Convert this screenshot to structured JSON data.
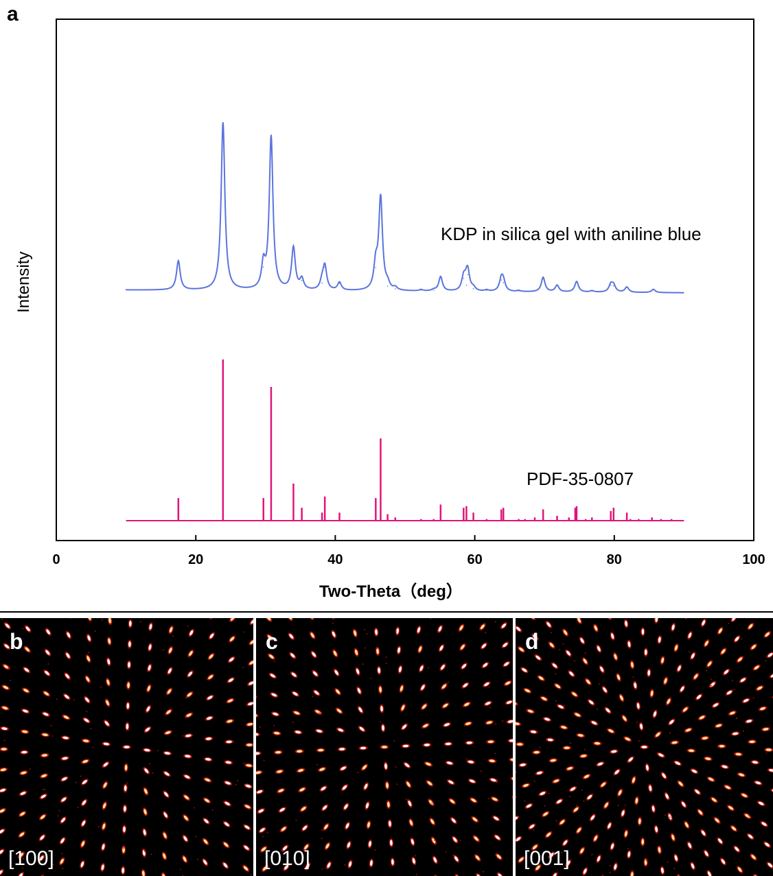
{
  "chart_data": {
    "type": "line",
    "panel_label": "a",
    "xlabel": "Two-Theta（deg）",
    "ylabel": "Intensity",
    "xlim": [
      0,
      100
    ],
    "xticks": [
      0,
      20,
      40,
      60,
      80,
      100
    ],
    "grid": false,
    "legend": "none",
    "series": [
      {
        "name": "KDP in silica gel with aniline  blue",
        "color": "#5a73dd",
        "style": "line",
        "baseline": 0.3,
        "x": [
          17.5,
          23.9,
          29.7,
          30.8,
          34.0,
          35.2,
          38.1,
          38.5,
          40.6,
          45.8,
          46.5,
          47.5,
          48.6,
          52.3,
          54.1,
          55.1,
          58.4,
          58.8,
          59.0,
          59.8,
          61.7,
          63.8,
          64.1,
          66.3,
          69.8,
          71.8,
          74.6,
          76.8,
          79.5,
          79.9,
          81.8,
          85.6
        ],
        "y": [
          11,
          63.5,
          9,
          58,
          16,
          4,
          3,
          9,
          3,
          9,
          35,
          2,
          1,
          0.5,
          0.5,
          5.5,
          5,
          2.5,
          6.5,
          1.2,
          0.5,
          4.5,
          3.5,
          0.4,
          5.5,
          2.5,
          4,
          0.5,
          2.8,
          2.5,
          2,
          1.2
        ]
      },
      {
        "name": "PDF-35-0807",
        "color": "#e0147a",
        "style": "stick",
        "x": [
          17.5,
          23.9,
          29.7,
          30.8,
          34.0,
          35.2,
          38.1,
          38.5,
          40.6,
          45.8,
          46.5,
          47.5,
          48.6,
          52.3,
          54.1,
          55.1,
          58.4,
          58.8,
          59.8,
          61.7,
          63.8,
          64.1,
          66.3,
          67.2,
          68.6,
          69.8,
          71.8,
          73.5,
          74.4,
          74.6,
          75.9,
          76.8,
          79.5,
          79.9,
          81.8,
          82.3,
          83.5,
          85.4,
          86.7,
          88.2
        ],
        "y": [
          14,
          100,
          14,
          83,
          23,
          8,
          5,
          15,
          5,
          14,
          51,
          4,
          2,
          1,
          1,
          10,
          8,
          9,
          5,
          1,
          7,
          8,
          1,
          1,
          2,
          7,
          3,
          2,
          8,
          9,
          1,
          2,
          6,
          8,
          5,
          1,
          1,
          2,
          1,
          1
        ]
      }
    ]
  },
  "diffraction_panels": [
    {
      "letter": "b",
      "zone_axis": "[100]"
    },
    {
      "letter": "c",
      "zone_axis": "[010]"
    },
    {
      "letter": "d",
      "zone_axis": "[001]"
    }
  ]
}
